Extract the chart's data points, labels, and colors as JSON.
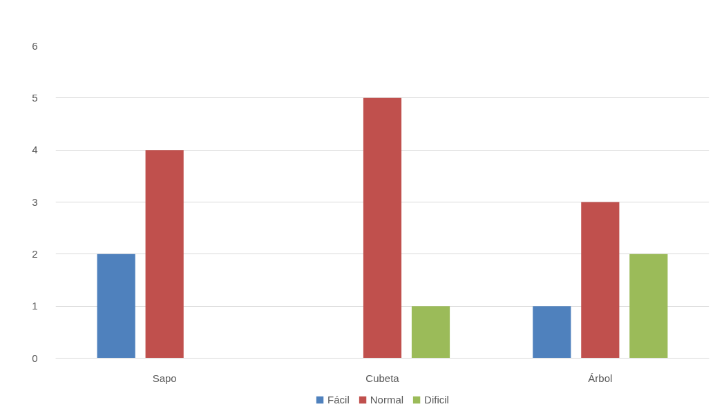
{
  "chart_data": {
    "type": "bar",
    "categories": [
      "Sapo",
      "Cubeta",
      "Árbol"
    ],
    "series": [
      {
        "name": "Fácil",
        "color": "#4f81bd",
        "values": [
          2,
          null,
          1
        ]
      },
      {
        "name": "Normal",
        "color": "#c0504d",
        "values": [
          4,
          5,
          3
        ]
      },
      {
        "name": "Dificil",
        "color": "#9bbb59",
        "values": [
          null,
          1,
          2
        ]
      }
    ],
    "ylim": [
      0,
      6
    ],
    "yticks": [
      0,
      1,
      2,
      3,
      4,
      5,
      6
    ],
    "grid": "y",
    "legend": "bottom"
  }
}
